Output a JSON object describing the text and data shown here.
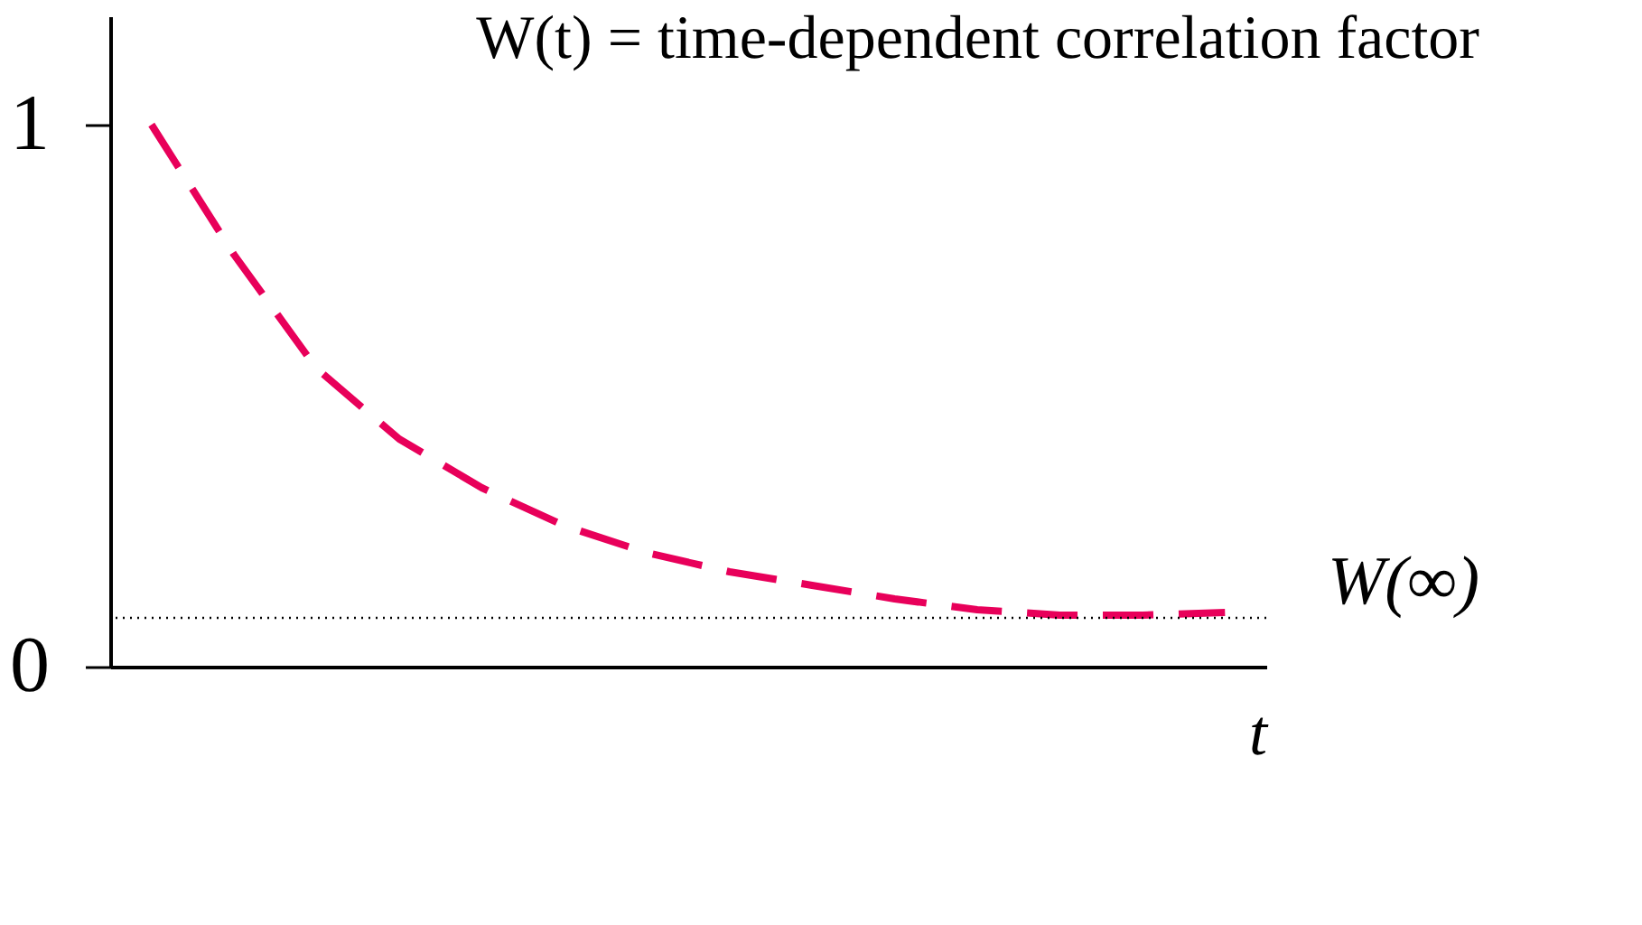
{
  "chart_data": {
    "type": "line",
    "title": "W(t)  =   time-dependent correlation factor",
    "xlabel": "t",
    "categories": [
      null,
      null,
      null,
      null,
      null,
      null,
      null,
      null,
      null,
      null,
      null,
      null,
      null,
      null
    ],
    "series": [
      {
        "color": "#e8005a",
        "values": [
          1.0,
          0.76,
          0.55,
          0.42,
          0.33,
          0.26,
          0.21,
          0.175,
          0.15,
          0.125,
          0.105,
          0.095,
          0.095,
          0.1
        ]
      }
    ],
    "ylim": [
      0,
      1.2
    ],
    "yticks": [
      0,
      1
    ],
    "grid": false,
    "tick_labels": "y",
    "line_style": "dashed",
    "marker": "none",
    "ref_lines": [
      {
        "axis": "y",
        "value": 0.09,
        "label": "W(∞)",
        "color": "#000000",
        "line_style": "dotted"
      }
    ]
  }
}
